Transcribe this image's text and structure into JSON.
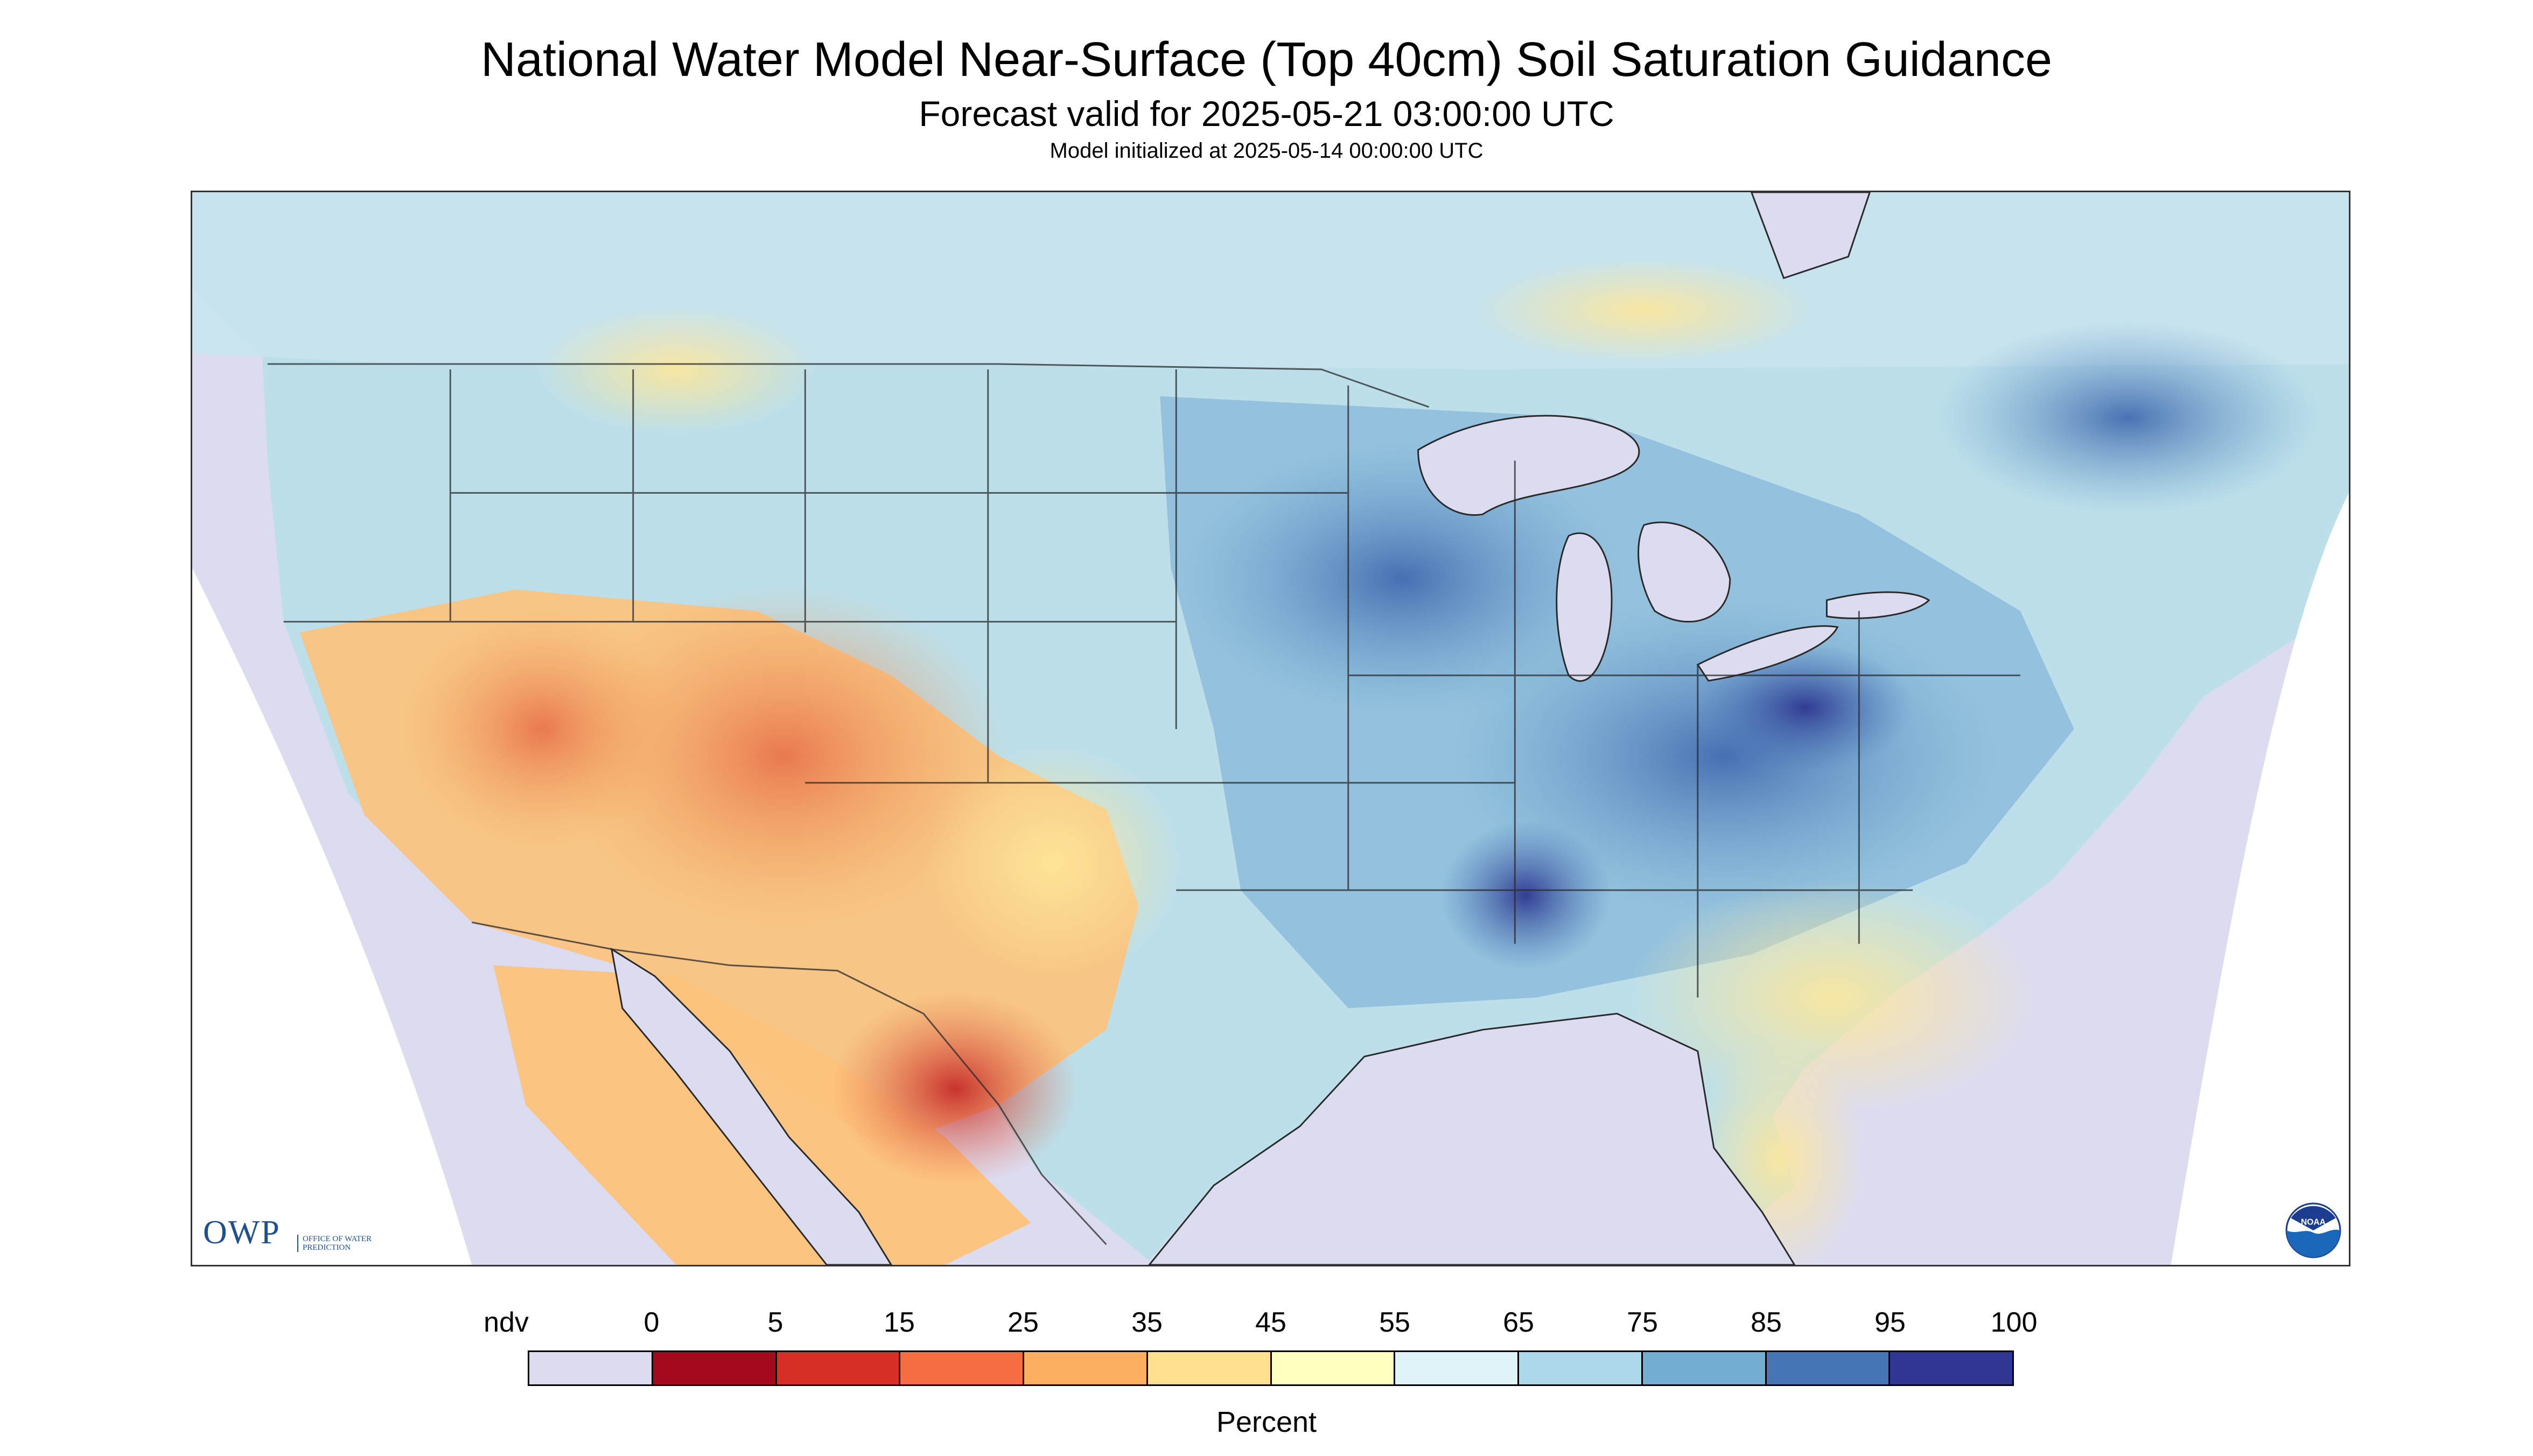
{
  "header": {
    "title": "National Water Model Near-Surface (Top 40cm) Soil Saturation Guidance",
    "subtitle": "Forecast valid for 2025-05-21 03:00:00 UTC",
    "init_line": "Model initialized at 2025-05-14 00:00:00 UTC"
  },
  "logos": {
    "owp_text": "OWP",
    "owp_subtext": "OFFICE OF WATER PREDICTION",
    "noaa_text": "NOAA"
  },
  "legend": {
    "unit_label": "Percent",
    "ticks": [
      "ndv",
      "0",
      "5",
      "15",
      "25",
      "35",
      "45",
      "55",
      "65",
      "75",
      "85",
      "95",
      "100"
    ],
    "colors": [
      "#dcdcf0",
      "#a50a1c",
      "#d73027",
      "#f46d43",
      "#fdae61",
      "#fee090",
      "#ffffbf",
      "#e0f3f8",
      "#abd9e9",
      "#74add1",
      "#4575b4",
      "#313695"
    ]
  },
  "map_colors": {
    "nodata": "#dcdcf0",
    "water": "#dcdcf0",
    "border": "#2a2a2a"
  }
}
